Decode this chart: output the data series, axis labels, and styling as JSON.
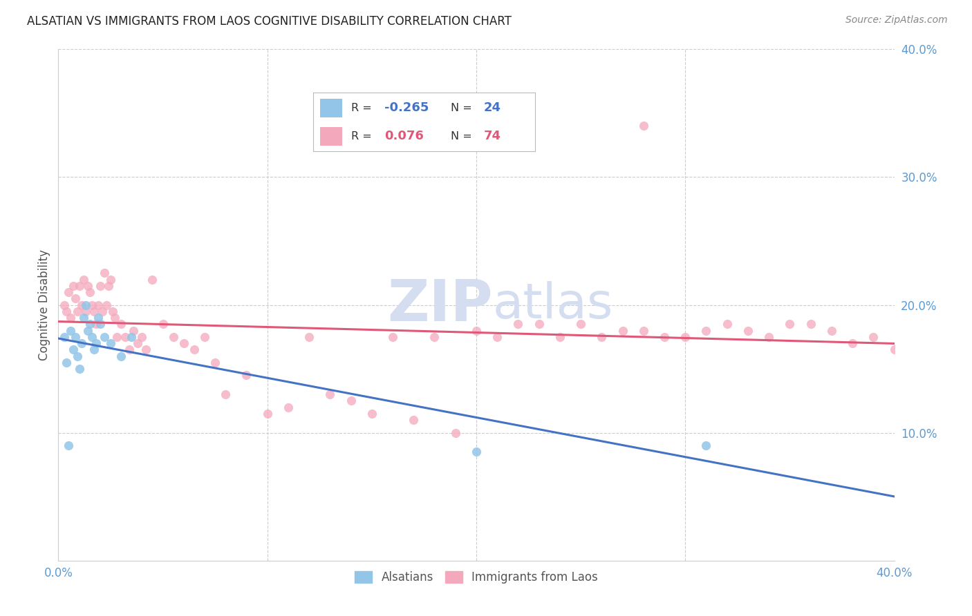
{
  "title": "ALSATIAN VS IMMIGRANTS FROM LAOS COGNITIVE DISABILITY CORRELATION CHART",
  "source": "Source: ZipAtlas.com",
  "ylabel": "Cognitive Disability",
  "xlim": [
    0.0,
    0.4
  ],
  "ylim": [
    0.0,
    0.4
  ],
  "yticks": [
    0.1,
    0.2,
    0.3,
    0.4
  ],
  "ytick_labels": [
    "10.0%",
    "20.0%",
    "30.0%",
    "40.0%"
  ],
  "xtick_labels": [
    "0.0%",
    "",
    "",
    "",
    "40.0%"
  ],
  "legend_R1": "-0.265",
  "legend_N1": "24",
  "legend_R2": "0.076",
  "legend_N2": "74",
  "color_alsatian": "#92C5E8",
  "color_laos": "#F4A8BC",
  "line_color_alsatian": "#4472C4",
  "line_color_laos": "#E05878",
  "tick_color": "#5B9BD5",
  "watermark_color": "#D5DEF0",
  "background_color": "#FFFFFF",
  "alsatian_x": [
    0.003,
    0.004,
    0.005,
    0.006,
    0.007,
    0.008,
    0.009,
    0.01,
    0.011,
    0.012,
    0.013,
    0.014,
    0.015,
    0.016,
    0.017,
    0.018,
    0.019,
    0.02,
    0.022,
    0.025,
    0.03,
    0.035,
    0.2,
    0.31
  ],
  "alsatian_y": [
    0.175,
    0.155,
    0.09,
    0.18,
    0.165,
    0.175,
    0.16,
    0.15,
    0.17,
    0.19,
    0.2,
    0.18,
    0.185,
    0.175,
    0.165,
    0.17,
    0.19,
    0.185,
    0.175,
    0.17,
    0.16,
    0.175,
    0.085,
    0.09
  ],
  "laos_x": [
    0.003,
    0.004,
    0.005,
    0.006,
    0.007,
    0.008,
    0.009,
    0.01,
    0.011,
    0.012,
    0.013,
    0.014,
    0.015,
    0.016,
    0.017,
    0.018,
    0.019,
    0.02,
    0.021,
    0.022,
    0.023,
    0.024,
    0.025,
    0.026,
    0.027,
    0.028,
    0.03,
    0.032,
    0.034,
    0.036,
    0.038,
    0.04,
    0.042,
    0.045,
    0.05,
    0.055,
    0.06,
    0.065,
    0.07,
    0.075,
    0.08,
    0.09,
    0.1,
    0.11,
    0.12,
    0.13,
    0.14,
    0.15,
    0.16,
    0.17,
    0.18,
    0.19,
    0.2,
    0.21,
    0.22,
    0.23,
    0.24,
    0.25,
    0.26,
    0.27,
    0.28,
    0.29,
    0.3,
    0.31,
    0.32,
    0.33,
    0.34,
    0.35,
    0.36,
    0.37,
    0.38,
    0.39,
    0.4,
    0.28
  ],
  "laos_y": [
    0.2,
    0.195,
    0.21,
    0.19,
    0.215,
    0.205,
    0.195,
    0.215,
    0.2,
    0.22,
    0.195,
    0.215,
    0.21,
    0.2,
    0.195,
    0.185,
    0.2,
    0.215,
    0.195,
    0.225,
    0.2,
    0.215,
    0.22,
    0.195,
    0.19,
    0.175,
    0.185,
    0.175,
    0.165,
    0.18,
    0.17,
    0.175,
    0.165,
    0.22,
    0.185,
    0.175,
    0.17,
    0.165,
    0.175,
    0.155,
    0.13,
    0.145,
    0.115,
    0.12,
    0.175,
    0.13,
    0.125,
    0.115,
    0.175,
    0.11,
    0.175,
    0.1,
    0.18,
    0.175,
    0.185,
    0.185,
    0.175,
    0.185,
    0.175,
    0.18,
    0.18,
    0.175,
    0.175,
    0.18,
    0.185,
    0.18,
    0.175,
    0.185,
    0.185,
    0.18,
    0.17,
    0.175,
    0.165,
    0.34
  ]
}
